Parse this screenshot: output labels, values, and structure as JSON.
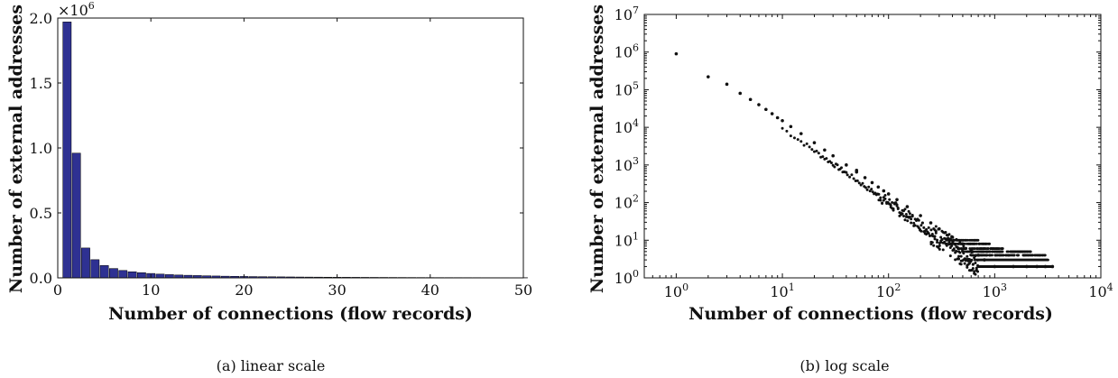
{
  "chart_data": [
    {
      "type": "bar",
      "caption": "(a)  linear scale",
      "xlabel": "Number of connections (flow records)",
      "ylabel": "Number of external addresses",
      "xlim": [
        0,
        50
      ],
      "ylim": [
        0,
        2.0
      ],
      "y_multiplier": "×10",
      "y_multiplier_exp": "6",
      "x_ticks": [
        "0",
        "10",
        "20",
        "30",
        "40",
        "50"
      ],
      "y_ticks": [
        "0.0",
        "0.5",
        "1.0",
        "1.5",
        "2.0"
      ],
      "bar_color": "#2e3192",
      "x": [
        1,
        2,
        3,
        4,
        5,
        6,
        7,
        8,
        9,
        10,
        11,
        12,
        13,
        14,
        15,
        16,
        17,
        18,
        19,
        20,
        21,
        22,
        23,
        24,
        25,
        26,
        27,
        28,
        29,
        30,
        31,
        32,
        33,
        34,
        35,
        36,
        37,
        38,
        39,
        40,
        41,
        42,
        43,
        44,
        45,
        46,
        47,
        48,
        49,
        50
      ],
      "values": [
        1.97,
        0.96,
        0.23,
        0.14,
        0.095,
        0.072,
        0.057,
        0.047,
        0.04,
        0.034,
        0.029,
        0.025,
        0.022,
        0.02,
        0.018,
        0.016,
        0.0145,
        0.013,
        0.012,
        0.011,
        0.01,
        0.0092,
        0.0085,
        0.0078,
        0.0072,
        0.0066,
        0.0061,
        0.0057,
        0.0053,
        0.0049,
        0.0046,
        0.0043,
        0.004,
        0.0038,
        0.0036,
        0.0034,
        0.0032,
        0.003,
        0.0028,
        0.0027,
        0.0025,
        0.0024,
        0.0023,
        0.0022,
        0.0021,
        0.002,
        0.0019,
        0.0018,
        0.0017,
        0.0016
      ]
    },
    {
      "type": "scatter",
      "caption": "(b)  log scale",
      "xlabel": "Number of connections (flow records)",
      "ylabel": "Number of external addresses",
      "x_scale": "log",
      "y_scale": "log",
      "xlim": [
        0.5,
        10000
      ],
      "ylim": [
        1,
        10000000
      ],
      "x_ticks": [
        {
          "base": "10",
          "exp": "0"
        },
        {
          "base": "10",
          "exp": "1"
        },
        {
          "base": "10",
          "exp": "2"
        },
        {
          "base": "10",
          "exp": "3"
        },
        {
          "base": "10",
          "exp": "4"
        }
      ],
      "y_ticks": [
        {
          "base": "10",
          "exp": "0"
        },
        {
          "base": "10",
          "exp": "1"
        },
        {
          "base": "10",
          "exp": "2"
        },
        {
          "base": "10",
          "exp": "3"
        },
        {
          "base": "10",
          "exp": "4"
        },
        {
          "base": "10",
          "exp": "5"
        },
        {
          "base": "10",
          "exp": "6"
        },
        {
          "base": "10",
          "exp": "7"
        }
      ],
      "point_color": "#111111",
      "trend": {
        "x_start": 1,
        "y_start": 900000,
        "exponent": -1.98
      },
      "points_x": [
        1,
        2,
        3,
        4,
        5,
        6,
        7,
        8,
        9,
        10,
        12,
        15,
        20,
        25,
        30,
        40,
        50,
        60,
        70,
        80,
        90,
        100,
        120,
        150,
        200,
        250,
        300,
        400,
        500,
        600,
        700,
        800,
        1000,
        1500,
        2000,
        2500,
        3000,
        3500,
        50
      ],
      "points_y": [
        900000,
        220000,
        140000,
        80000,
        55000,
        40000,
        30000,
        23000,
        18000,
        15000,
        10500,
        6800,
        3900,
        2500,
        1750,
        1000,
        650,
        460,
        340,
        260,
        205,
        170,
        120,
        78,
        45,
        29,
        20,
        12,
        8,
        5.5,
        4,
        3,
        2,
        2,
        2,
        2,
        2,
        2,
        720
      ]
    }
  ]
}
